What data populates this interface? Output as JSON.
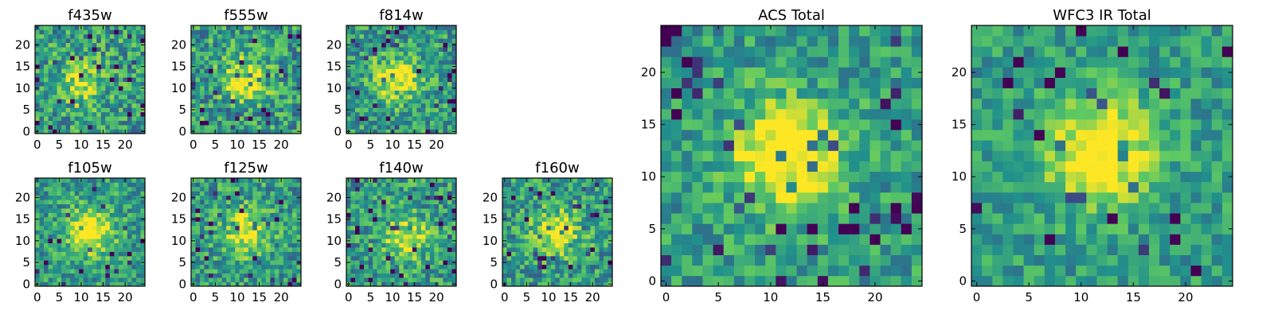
{
  "colormap": [
    "#440154",
    "#3b528b",
    "#21918c",
    "#5ec962",
    "#fde725"
  ],
  "chart_data": [
    {
      "type": "heatmap",
      "title": "f435w",
      "size": 25,
      "center": [
        10,
        11
      ],
      "xticks": [
        0,
        5,
        10,
        15,
        20
      ],
      "yticks": [
        0,
        5,
        10,
        15,
        20
      ],
      "noise": 0.55,
      "amplitude": 0.35
    },
    {
      "type": "heatmap",
      "title": "f555w",
      "size": 25,
      "center": [
        12,
        12
      ],
      "xticks": [
        0,
        5,
        10,
        15,
        20
      ],
      "yticks": [
        0,
        5,
        10,
        15,
        20
      ],
      "noise": 0.55,
      "amplitude": 0.4
    },
    {
      "type": "heatmap",
      "title": "f814w",
      "size": 25,
      "center": [
        11,
        12
      ],
      "xticks": [
        0,
        5,
        10,
        15,
        20
      ],
      "yticks": [
        0,
        5,
        10,
        15,
        20
      ],
      "noise": 0.5,
      "amplitude": 0.45
    },
    {
      "type": "heatmap",
      "title": "f105w",
      "size": 25,
      "center": [
        12,
        12
      ],
      "xticks": [
        0,
        5,
        10,
        15,
        20
      ],
      "yticks": [
        0,
        5,
        10,
        15,
        20
      ],
      "noise": 0.45,
      "amplitude": 0.55
    },
    {
      "type": "heatmap",
      "title": "f125w",
      "size": 25,
      "center": [
        12,
        12
      ],
      "xticks": [
        0,
        5,
        10,
        15,
        20
      ],
      "yticks": [
        0,
        5,
        10,
        15,
        20
      ],
      "noise": 0.5,
      "amplitude": 0.45
    },
    {
      "type": "heatmap",
      "title": "f140w",
      "size": 25,
      "center": [
        13,
        11
      ],
      "xticks": [
        0,
        5,
        10,
        15,
        20
      ],
      "yticks": [
        0,
        5,
        10,
        15,
        20
      ],
      "noise": 0.5,
      "amplitude": 0.4
    },
    {
      "type": "heatmap",
      "title": "f160w",
      "size": 25,
      "center": [
        12,
        12
      ],
      "xticks": [
        0,
        5,
        10,
        15,
        20
      ],
      "yticks": [
        0,
        5,
        10,
        15,
        20
      ],
      "noise": 0.5,
      "amplitude": 0.45
    },
    {
      "type": "heatmap",
      "title": "ACS Total",
      "size": 25,
      "center": [
        11.5,
        12
      ],
      "xticks": [
        0,
        5,
        10,
        15,
        20
      ],
      "yticks": [
        0,
        5,
        10,
        15,
        20
      ],
      "noise": 0.4,
      "amplitude": 0.6
    },
    {
      "type": "heatmap",
      "title": "WFC3 IR Total",
      "size": 25,
      "center": [
        12,
        12.5
      ],
      "xticks": [
        0,
        5,
        10,
        15,
        20
      ],
      "yticks": [
        0,
        5,
        10,
        15,
        20
      ],
      "noise": 0.35,
      "amplitude": 0.6
    }
  ]
}
